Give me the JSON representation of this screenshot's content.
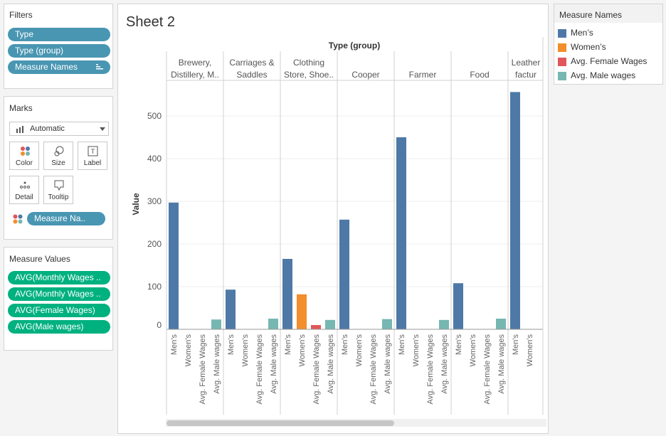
{
  "filters": {
    "title": "Filters",
    "pills": [
      "Type",
      "Type (group)",
      "Measure Names"
    ]
  },
  "marks": {
    "title": "Marks",
    "mark_type": "Automatic",
    "buttons": [
      "Color",
      "Size",
      "Label",
      "Detail",
      "Tooltip"
    ],
    "color_pill": "Measure Na.."
  },
  "measure_values": {
    "title": "Measure Values",
    "pills": [
      "AVG(Monthly Wages ..",
      "AVG(Monthly Wages ..",
      "AVG(Female Wages)",
      "AVG(Male wages)"
    ]
  },
  "sheet": {
    "title": "Sheet 2"
  },
  "legend": {
    "title": "Measure Names",
    "items": [
      {
        "label": "Men’s",
        "color": "#4e79a7"
      },
      {
        "label": "Women’s",
        "color": "#f28e2b"
      },
      {
        "label": "Avg. Female Wages",
        "color": "#e15759"
      },
      {
        "label": "Avg. Male wages",
        "color": "#76b7b2"
      }
    ]
  },
  "chart_data": {
    "type": "bar",
    "title": "Sheet 2",
    "column_header_title": "Type (group)",
    "ylabel": "Value",
    "ylim": [
      0,
      560
    ],
    "yticks": [
      0,
      100,
      200,
      300,
      400,
      500
    ],
    "measures": [
      "Men's",
      "Women's",
      "Avg. Female Wages",
      "Avg. Male wages"
    ],
    "groups": [
      {
        "name": [
          "Brewery,",
          "Distillery, M.."
        ],
        "values": [
          297,
          0,
          0,
          23
        ]
      },
      {
        "name": [
          "Carriages &",
          "Saddles"
        ],
        "values": [
          93,
          0,
          0,
          25
        ]
      },
      {
        "name": [
          "Clothing",
          "Store, Shoe.."
        ],
        "values": [
          165,
          82,
          10,
          22
        ]
      },
      {
        "name": [
          "Cooper"
        ],
        "values": [
          257,
          0,
          0,
          24
        ]
      },
      {
        "name": [
          "Farmer"
        ],
        "values": [
          450,
          0,
          0,
          22
        ]
      },
      {
        "name": [
          "Food"
        ],
        "values": [
          108,
          0,
          0,
          25
        ]
      },
      {
        "name": [
          "Leather",
          "factur"
        ],
        "values": [
          556,
          0,
          0,
          0
        ]
      }
    ]
  }
}
